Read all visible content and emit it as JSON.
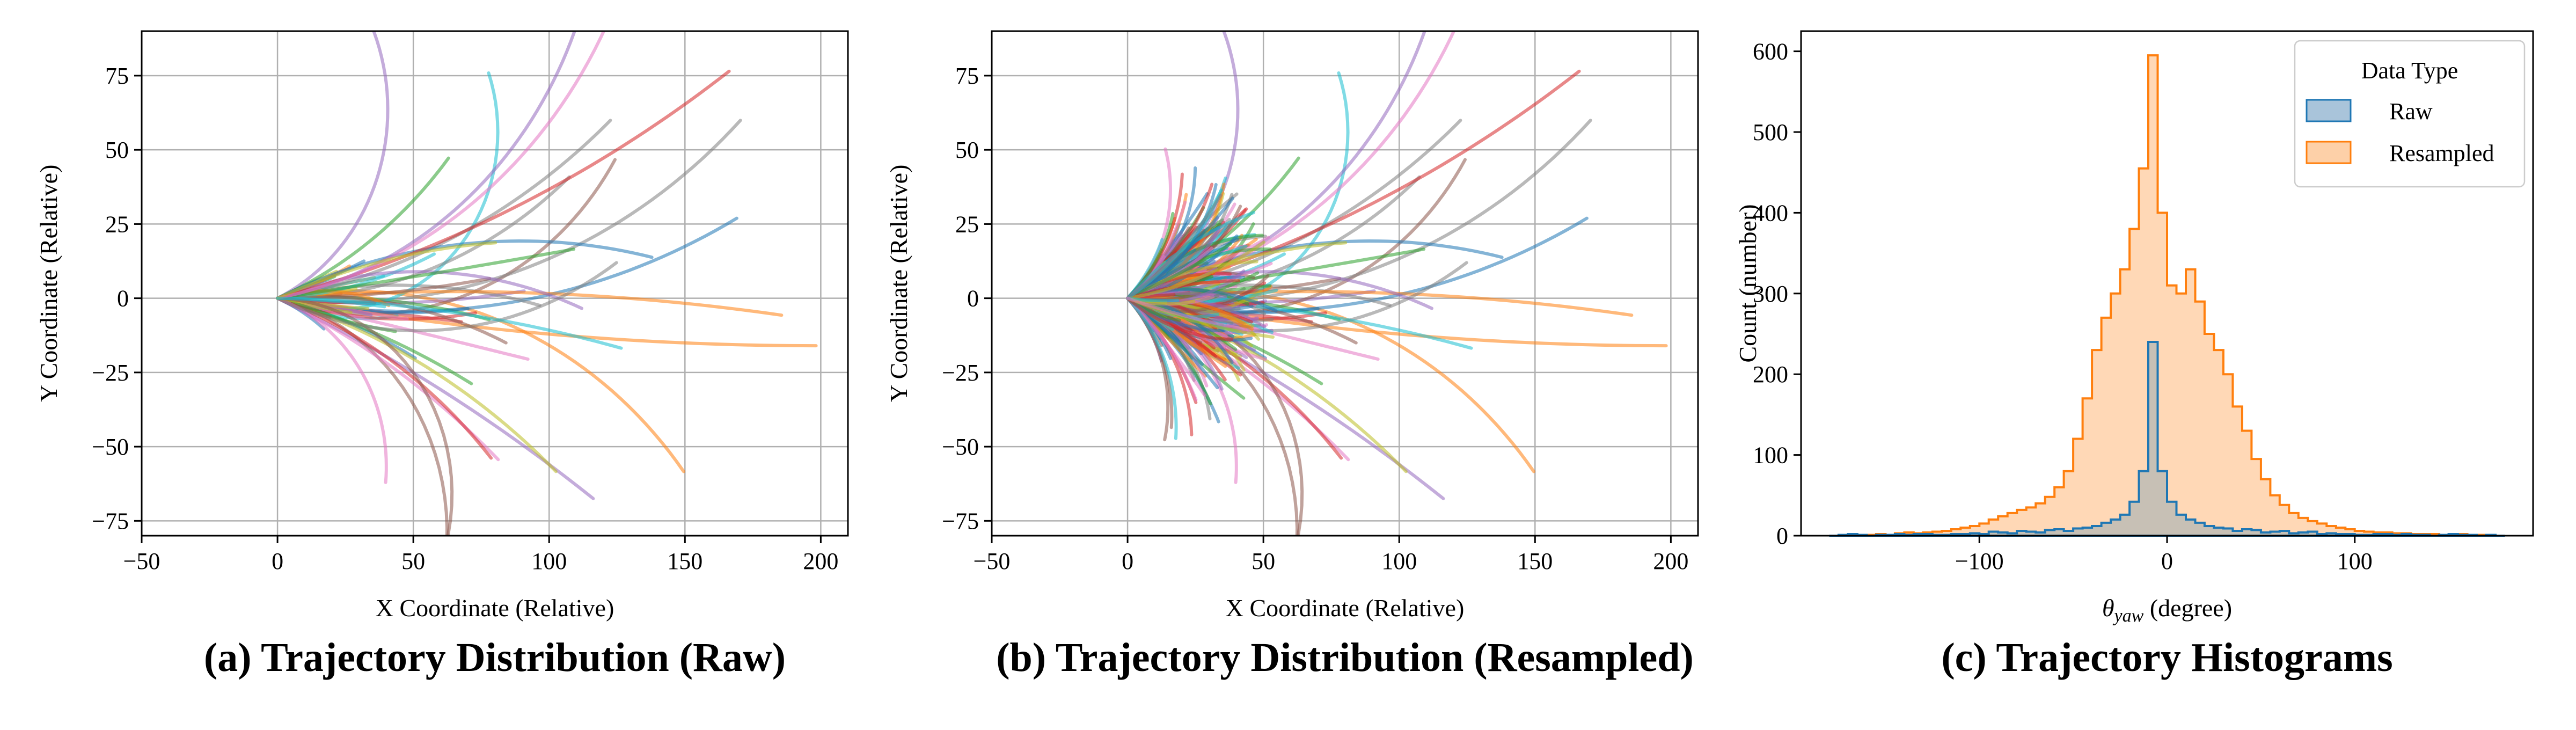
{
  "chart_data": [
    {
      "id": "a",
      "type": "line",
      "caption": "(a) Trajectory Distribution (Raw)",
      "xlabel": "X Coordinate (Relative)",
      "ylabel": "Y Coordinate (Relative)",
      "xlim": [
        -50,
        210
      ],
      "ylim": [
        -80,
        90
      ],
      "xticks": [
        -50,
        0,
        50,
        100,
        150,
        200
      ],
      "yticks": [
        -75,
        -50,
        -25,
        0,
        25,
        50,
        75
      ],
      "xtick_labels": [
        "−50",
        "0",
        "50",
        "100",
        "150",
        "200"
      ],
      "ytick_labels": [
        "−75",
        "−50",
        "−25",
        "0",
        "25",
        "50",
        "75"
      ],
      "grid": true,
      "series_count": 60,
      "series_seed": 11,
      "extra_random": 0,
      "line_opacity": 0.55
    },
    {
      "id": "b",
      "type": "line",
      "caption": "(b) Trajectory Distribution (Resampled)",
      "xlabel": "X Coordinate (Relative)",
      "ylabel": "Y Coordinate (Relative)",
      "xlim": [
        -50,
        210
      ],
      "ylim": [
        -80,
        90
      ],
      "xticks": [
        -50,
        0,
        50,
        100,
        150,
        200
      ],
      "yticks": [
        -75,
        -50,
        -25,
        0,
        25,
        50,
        75
      ],
      "xtick_labels": [
        "−50",
        "0",
        "50",
        "100",
        "150",
        "200"
      ],
      "ytick_labels": [
        "−75",
        "−50",
        "−25",
        "0",
        "25",
        "50",
        "75"
      ],
      "grid": true,
      "series_count": 60,
      "series_seed": 11,
      "extra_random": 330,
      "line_opacity": 0.55
    },
    {
      "id": "c",
      "type": "histogram",
      "caption": "(c) Trajectory Histograms",
      "xlabel": "θyaw (degree)",
      "xlabel_symbol": "θ",
      "xlabel_subscript": "yaw",
      "xlabel_unit": " (degree)",
      "ylabel": "Count (number)",
      "xlim": [
        -195,
        195
      ],
      "ylim": [
        0,
        625
      ],
      "xticks": [
        -100,
        0,
        100
      ],
      "yticks": [
        0,
        100,
        200,
        300,
        400,
        500,
        600
      ],
      "xtick_labels": [
        "−100",
        "0",
        "100"
      ],
      "ytick_labels": [
        "0",
        "100",
        "200",
        "300",
        "400",
        "500",
        "600"
      ],
      "grid": false,
      "bin_start": -180,
      "bin_width": 5,
      "legend": {
        "title": "Data Type",
        "position": "upper-right",
        "entries": [
          {
            "name": "Raw",
            "fill": "#a9c4da",
            "edge": "#1f77b4"
          },
          {
            "name": "Resampled",
            "fill": "#fdd0a8",
            "edge": "#ff7f0e"
          }
        ]
      },
      "series": [
        {
          "name": "Raw",
          "edge_color": "#1f77b4",
          "fill_color": "#1f77b4",
          "fill_opacity": 0.25,
          "counts": [
            0,
            1,
            2,
            1,
            0,
            1,
            1,
            2,
            1,
            2,
            2,
            1,
            1,
            2,
            2,
            3,
            2,
            5,
            4,
            3,
            6,
            5,
            4,
            7,
            8,
            6,
            9,
            10,
            12,
            16,
            20,
            26,
            42,
            80,
            240,
            80,
            42,
            26,
            20,
            16,
            12,
            10,
            9,
            6,
            8,
            7,
            4,
            5,
            6,
            3,
            4,
            5,
            2,
            3,
            2,
            2,
            1,
            1,
            2,
            2,
            1,
            2,
            1,
            1,
            0,
            1,
            2,
            1,
            1,
            0,
            1,
            0
          ]
        },
        {
          "name": "Resampled",
          "edge_color": "#ff7f0e",
          "fill_color": "#ff7f0e",
          "fill_opacity": 0.3,
          "counts": [
            0,
            0,
            2,
            1,
            1,
            2,
            1,
            3,
            4,
            3,
            4,
            5,
            6,
            8,
            10,
            12,
            15,
            20,
            24,
            28,
            32,
            35,
            40,
            48,
            60,
            80,
            120,
            170,
            230,
            270,
            300,
            330,
            380,
            455,
            595,
            400,
            310,
            300,
            330,
            290,
            250,
            230,
            200,
            160,
            130,
            95,
            70,
            50,
            38,
            28,
            22,
            18,
            15,
            12,
            10,
            8,
            6,
            5,
            4,
            4,
            3,
            3,
            2,
            2,
            2,
            1,
            1,
            2,
            1,
            1,
            0,
            0
          ]
        }
      ]
    }
  ]
}
